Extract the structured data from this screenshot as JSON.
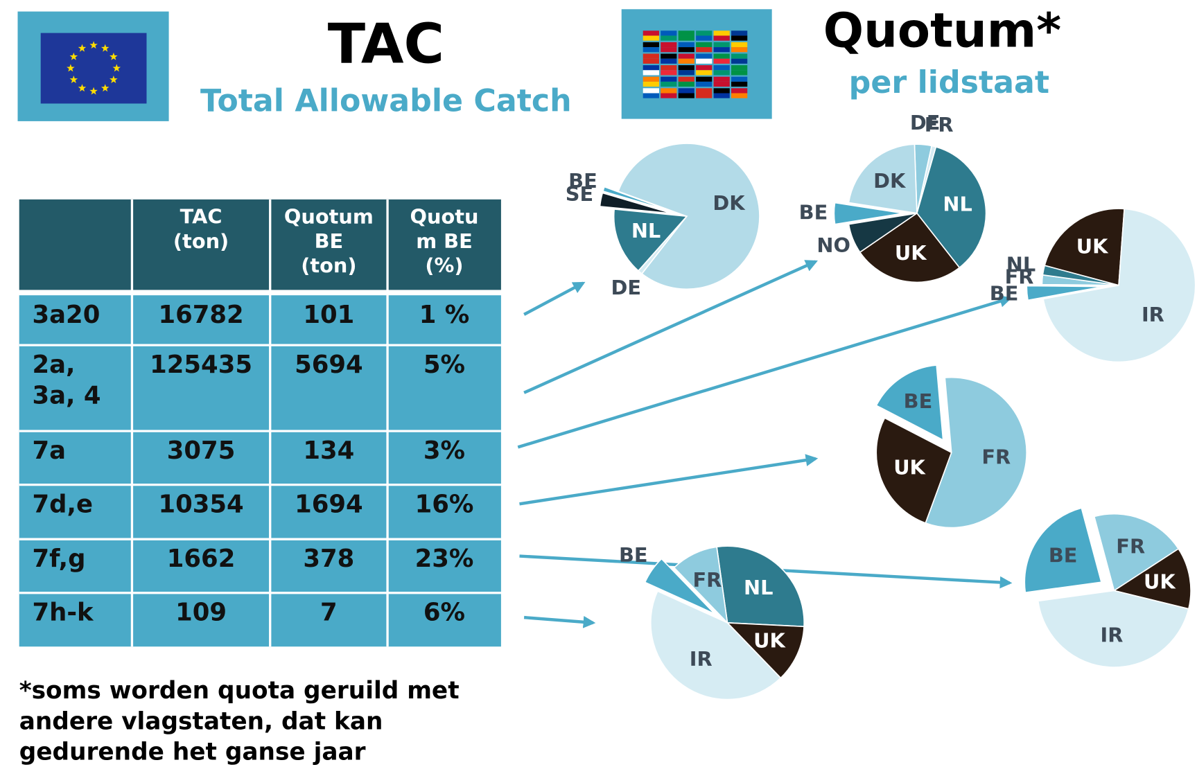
{
  "header": {
    "title": "TAC",
    "subtitle": "Total Allowable Catch",
    "quota_title": "Quotum*",
    "quota_subtitle": "per lidstaat"
  },
  "table": {
    "headers": [
      [
        "TAC",
        "(ton)"
      ],
      [
        "Quotum",
        "BE",
        "(ton)"
      ],
      [
        "Quotu",
        "m BE",
        "(%)"
      ]
    ],
    "rows": [
      [
        [
          "3a20"
        ],
        "16782",
        "101",
        "1 %"
      ],
      [
        [
          "2a,",
          "3a, 4"
        ],
        "125435",
        "5694",
        "5%"
      ],
      [
        [
          "7a"
        ],
        "3075",
        "134",
        "3%"
      ],
      [
        [
          "7d,e"
        ],
        "10354",
        "1694",
        "16%"
      ],
      [
        [
          "7f,g"
        ],
        "1662",
        "378",
        "23%"
      ],
      [
        [
          "7h-k"
        ],
        "109",
        "7",
        "6%"
      ]
    ]
  },
  "footnote": [
    "*soms worden quota geruild met",
    "andere vlagstaten, dat kan",
    "gedurende het ganse jaar"
  ],
  "chart_data": [
    {
      "type": "pie",
      "categories": [
        "DK",
        "DE",
        "NL",
        "SE",
        "BE"
      ],
      "values": [
        80,
        1,
        15,
        3,
        1
      ],
      "colors": [
        "#b3dbe8",
        "#d6ecf3",
        "#2e7b8e",
        "#0f1e27",
        "#4aaac8"
      ]
    },
    {
      "type": "pie",
      "categories": [
        "DE",
        "FR",
        "NL",
        "UK",
        "NO",
        "BE",
        "DK"
      ],
      "values": [
        4,
        1,
        35,
        26,
        7,
        5,
        22
      ],
      "colors": [
        "#8ecbde",
        "#d6ecf3",
        "#2e7b8e",
        "#2a1a10",
        "#163844",
        "#4aaac8",
        "#b3dbe8"
      ]
    },
    {
      "type": "pie",
      "categories": [
        "UK",
        "IR",
        "BE",
        "FR",
        "NL"
      ],
      "values": [
        22,
        71,
        3,
        2,
        2
      ],
      "colors": [
        "#2a1a10",
        "#d6ecf3",
        "#4aaac8",
        "#8ecbde",
        "#2e7b8e"
      ]
    },
    {
      "type": "pie",
      "categories": [
        "FR",
        "UK",
        "BE"
      ],
      "values": [
        57,
        27,
        16
      ],
      "colors": [
        "#8ecbde",
        "#2a1a10",
        "#4aaac8"
      ]
    },
    {
      "type": "pie",
      "categories": [
        "FR",
        "UK",
        "IR",
        "BE"
      ],
      "values": [
        20,
        13,
        44,
        23
      ],
      "colors": [
        "#8ecbde",
        "#2a1a10",
        "#d6ecf3",
        "#4aaac8"
      ]
    },
    {
      "type": "pie",
      "categories": [
        "NL",
        "UK",
        "IR",
        "BE",
        "FR"
      ],
      "values": [
        28,
        12,
        44,
        6,
        10
      ],
      "colors": [
        "#2e7b8e",
        "#2a1a10",
        "#d6ecf3",
        "#4aaac8",
        "#8ecbde"
      ]
    }
  ]
}
